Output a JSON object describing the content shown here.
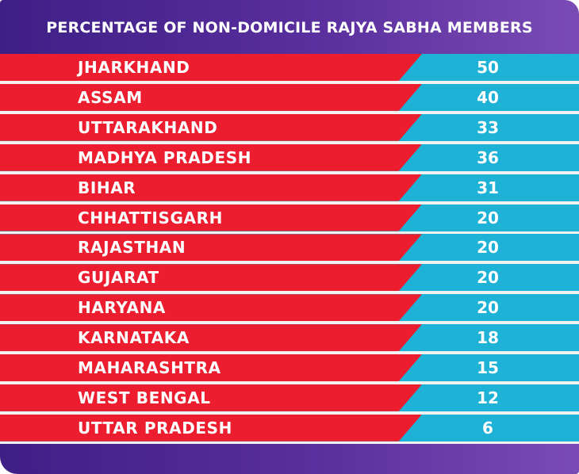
{
  "chart_data": {
    "type": "table",
    "title": "PERCENTAGE OF NON-DOMICILE RAJYA SABHA MEMBERS",
    "categories": [
      "JHARKHAND",
      "ASSAM",
      "UTTARAKHAND",
      "MADHYA PRADESH",
      "BIHAR",
      "CHHATTISGARH",
      "RAJASTHAN",
      "GUJARAT",
      "HARYANA",
      "KARNATAKA",
      "MAHARASHTRA",
      "WEST BENGAL",
      "UTTAR PRADESH"
    ],
    "values": [
      50,
      40,
      33,
      36,
      31,
      20,
      20,
      20,
      20,
      18,
      15,
      12,
      6
    ]
  },
  "colors": {
    "header_bg": "#4a2690",
    "label_bg": "#ec1d2f",
    "value_bg": "#1db2d6",
    "text": "#ffffff"
  }
}
